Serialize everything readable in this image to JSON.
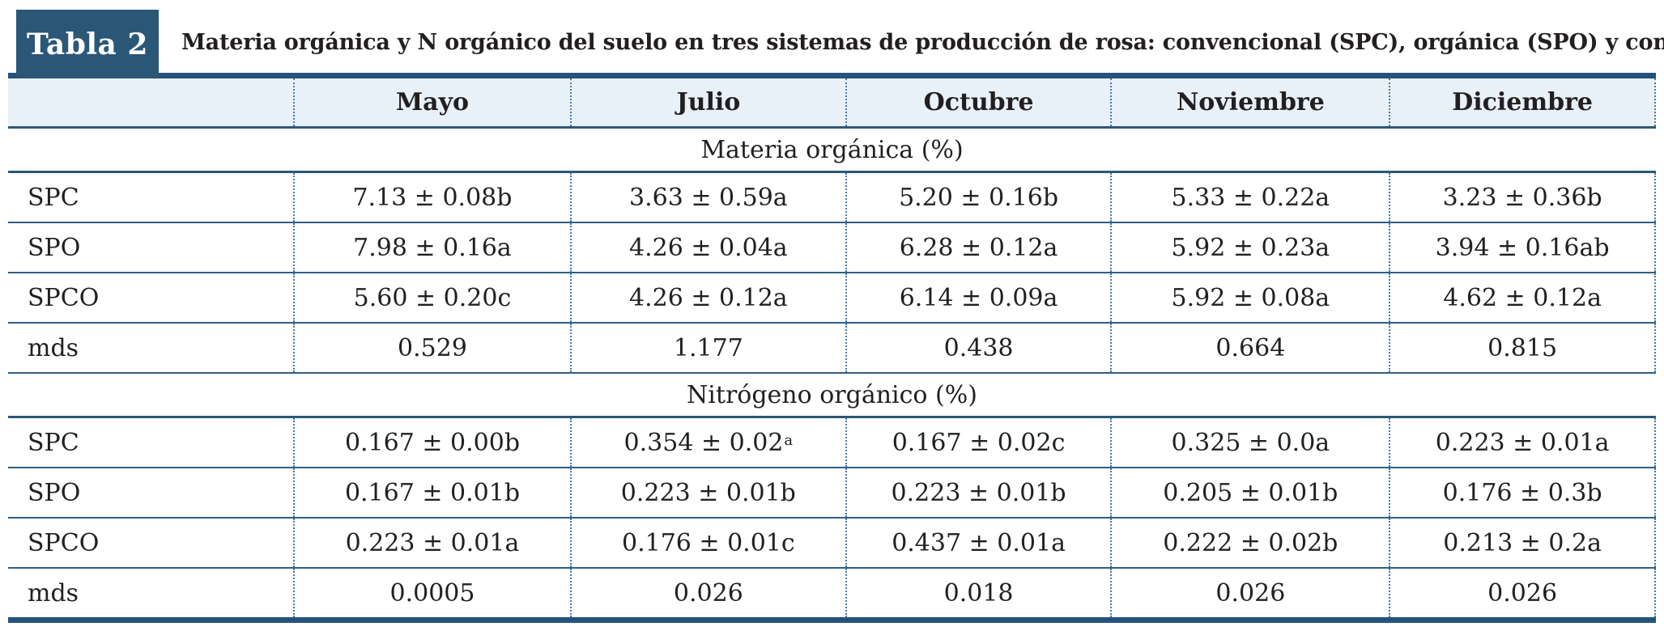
{
  "badge": {
    "label": "Tabla 2"
  },
  "title": "Materia orgánica y N orgánico del suelo en tres sistemas de producción de rosa: convencional (SPC), orgánica (SPO) y convencional-orgánica (SPCO)",
  "table": {
    "columns": [
      "",
      "Mayo",
      "Julio",
      "Octubre",
      "Noviembre",
      "Diciembre"
    ],
    "sections": [
      {
        "header": "Materia orgánica (%)",
        "rows": [
          {
            "label": "SPC",
            "values": [
              "7.13 ± 0.08b",
              "3.63 ± 0.59a",
              "5.20 ± 0.16b",
              "5.33 ± 0.22a",
              "3.23 ± 0.36b"
            ]
          },
          {
            "label": "SPO",
            "values": [
              "7.98 ± 0.16a",
              "4.26 ± 0.04a",
              "6.28 ± 0.12a",
              "5.92 ± 0.23a",
              "3.94 ± 0.16ab"
            ]
          },
          {
            "label": "SPCO",
            "values": [
              "5.60 ± 0.20c",
              "4.26 ± 0.12a",
              "6.14 ± 0.09a",
              "5.92 ± 0.08a",
              "4.62 ± 0.12a"
            ]
          },
          {
            "label": "mds",
            "values": [
              "0.529",
              "1.177",
              "0.438",
              "0.664",
              "0.815"
            ]
          }
        ]
      },
      {
        "header": "Nitrógeno orgánico (%)",
        "rows": [
          {
            "label": "SPC",
            "values": [
              "0.167 ± 0.00b",
              "0.354 ± 0.02^a",
              "0.167 ± 0.02c",
              "0.325 ± 0.0a",
              "0.223 ± 0.01a"
            ]
          },
          {
            "label": "SPO",
            "values": [
              "0.167 ± 0.01b",
              "0.223 ± 0.01b",
              "0.223 ± 0.01b",
              "0.205 ± 0.01b",
              "0.176 ± 0.3b"
            ]
          },
          {
            "label": "SPCO",
            "values": [
              "0.223 ± 0.01a",
              "0.176 ± 0.01c",
              "0.437 ± 0.01a",
              "0.222 ± 0.02b",
              "0.213 ± 0.2a"
            ]
          },
          {
            "label": "mds",
            "values": [
              "0.0005",
              "0.026",
              "0.018",
              "0.026",
              "0.026"
            ]
          }
        ]
      }
    ]
  },
  "colors": {
    "badge_bg": "#2b5777",
    "header_bg": "#e9f1f8",
    "rule_dark": "#24527a",
    "row_line": "#2e5f86",
    "dotted_line": "#4878a8",
    "text": "#231f20"
  }
}
